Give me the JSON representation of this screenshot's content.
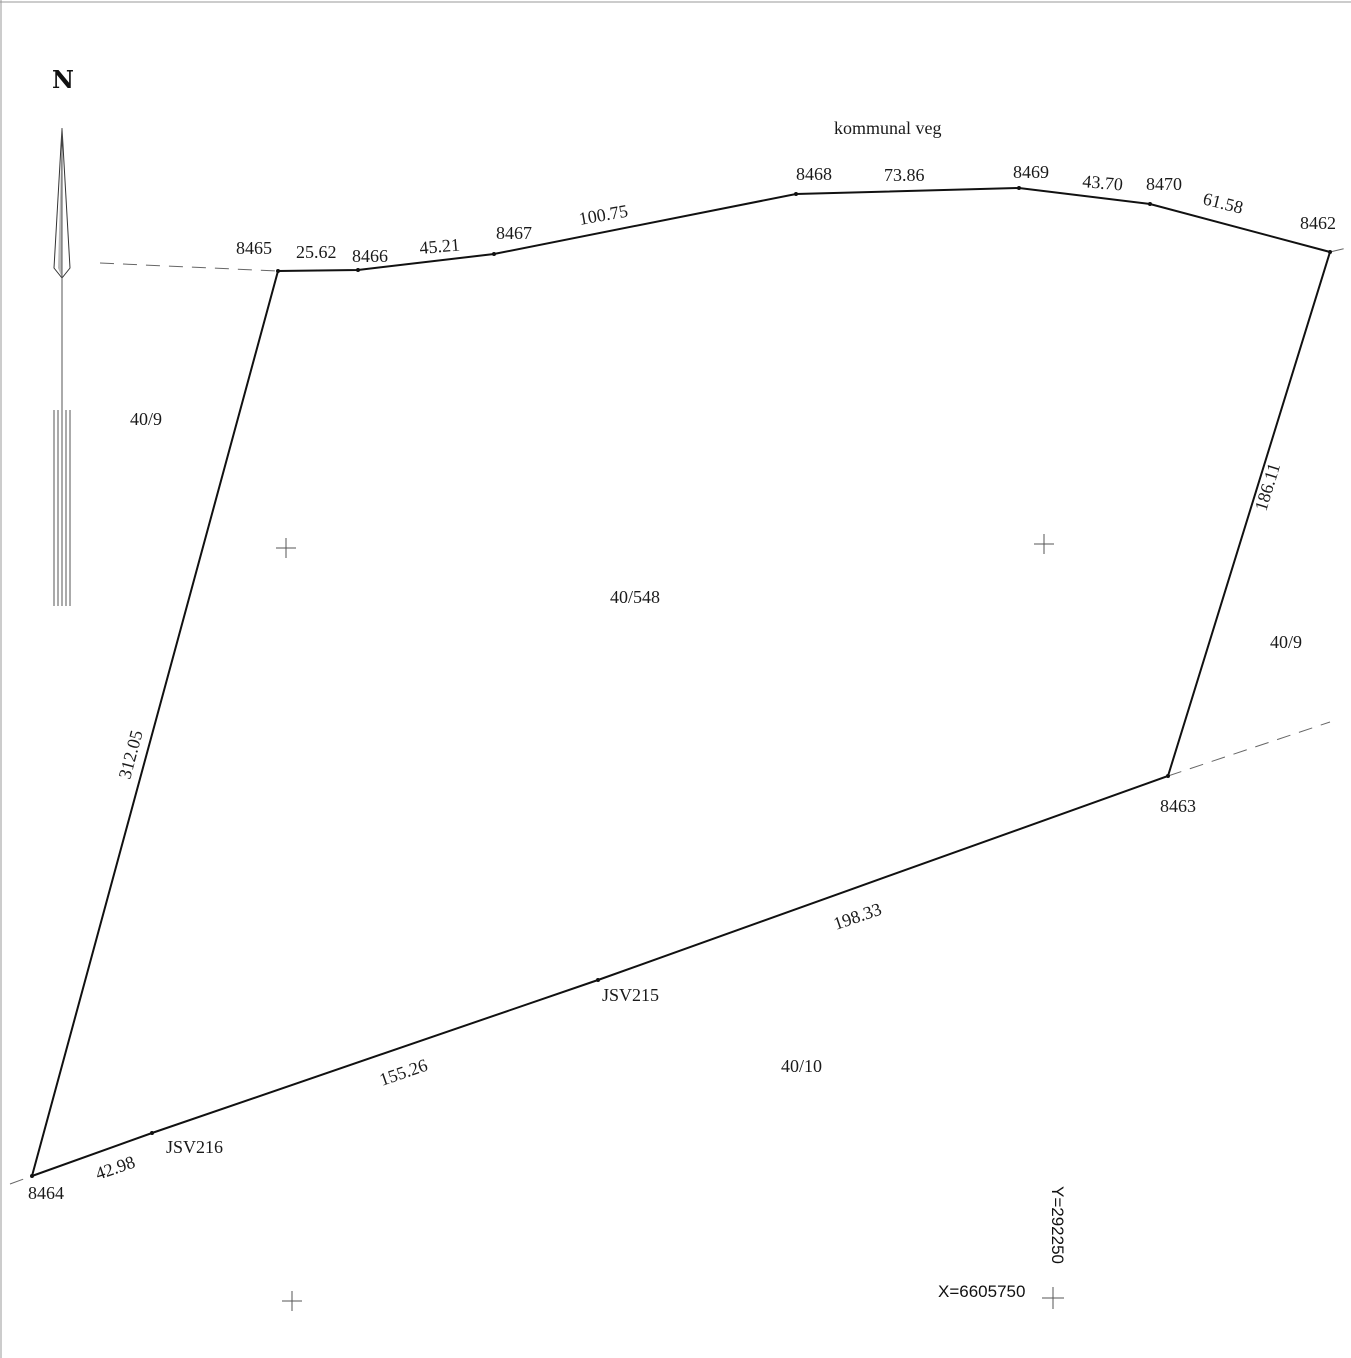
{
  "north_label": "N",
  "road_label": "kommunal veg",
  "parcels": {
    "main": "40/548",
    "west": "40/9",
    "east": "40/9",
    "south": "40/10"
  },
  "points": {
    "p8462": "8462",
    "p8463": "8463",
    "p8464": "8464",
    "p8465": "8465",
    "p8466": "8466",
    "p8467": "8467",
    "p8468": "8468",
    "p8469": "8469",
    "p8470": "8470",
    "jsv215": "JSV215",
    "jsv216": "JSV216"
  },
  "distances": {
    "d8465_8466": "25.62",
    "d8466_8467": "45.21",
    "d8467_8468": "100.75",
    "d8468_8469": "73.86",
    "d8469_8470": "43.70",
    "d8470_8462": "61.58",
    "d8462_8463": "186.11",
    "d8463_jsv215": "198.33",
    "djsv215_jsv216": "155.26",
    "djsv216_8464": "42.98",
    "d8464_8465": "312.05"
  },
  "coordinates": {
    "y_label": "Y=292250",
    "x_label": "X=6605750"
  }
}
